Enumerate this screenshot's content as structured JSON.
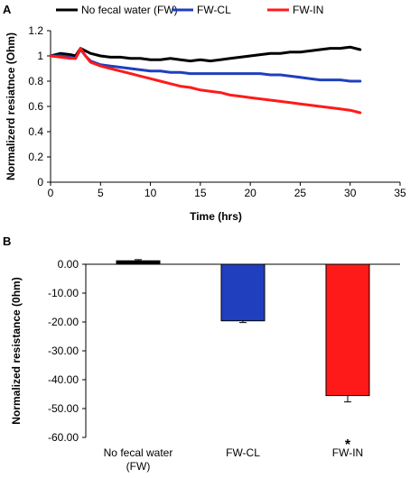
{
  "chart_data": [
    {
      "panel_label": "A",
      "type": "line",
      "xlabel": "Time (hrs)",
      "ylabel": "Normalizerd resiatnce (Ohm)",
      "xlim": [
        0,
        35
      ],
      "ylim": [
        0,
        1.2
      ],
      "x_ticks": [
        0,
        5,
        10,
        15,
        20,
        25,
        30,
        35
      ],
      "y_ticks": [
        0,
        0.2,
        0.4,
        0.6,
        0.8,
        1,
        1.2
      ],
      "y_tick_labels": [
        "0",
        "0.2",
        "0.4",
        "0.6",
        "0.8",
        "1",
        "1.2"
      ],
      "grid": false,
      "legend_position": "top",
      "series": [
        {
          "name": "No fecal water (FW)",
          "color": "#000000",
          "x": [
            0,
            1,
            2,
            2.5,
            3,
            3.5,
            4,
            5,
            6,
            7,
            8,
            9,
            10,
            11,
            12,
            13,
            14,
            15,
            16,
            17,
            18,
            19,
            20,
            21,
            22,
            23,
            24,
            25,
            26,
            27,
            28,
            29,
            30,
            31
          ],
          "y": [
            1.0,
            1.02,
            1.01,
            1.0,
            1.06,
            1.04,
            1.02,
            1.0,
            0.99,
            0.99,
            0.98,
            0.98,
            0.97,
            0.97,
            0.98,
            0.97,
            0.96,
            0.97,
            0.96,
            0.97,
            0.98,
            0.99,
            1.0,
            1.01,
            1.02,
            1.02,
            1.03,
            1.03,
            1.04,
            1.05,
            1.06,
            1.06,
            1.07,
            1.05
          ]
        },
        {
          "name": "FW-CL",
          "color": "#1f3fbf",
          "x": [
            0,
            1,
            2,
            2.5,
            3,
            3.5,
            4,
            5,
            6,
            7,
            8,
            9,
            10,
            11,
            12,
            13,
            14,
            15,
            16,
            17,
            18,
            19,
            20,
            21,
            22,
            23,
            24,
            25,
            26,
            27,
            28,
            29,
            30,
            31
          ],
          "y": [
            1.0,
            1.0,
            0.99,
            0.98,
            1.05,
            1.0,
            0.96,
            0.93,
            0.92,
            0.91,
            0.9,
            0.89,
            0.88,
            0.88,
            0.87,
            0.87,
            0.86,
            0.86,
            0.86,
            0.86,
            0.86,
            0.86,
            0.86,
            0.86,
            0.85,
            0.85,
            0.84,
            0.83,
            0.82,
            0.81,
            0.81,
            0.81,
            0.8,
            0.8
          ]
        },
        {
          "name": "FW-IN",
          "color": "#ff1a1a",
          "x": [
            0,
            1,
            2,
            2.5,
            3,
            3.5,
            4,
            5,
            6,
            7,
            8,
            9,
            10,
            11,
            12,
            13,
            14,
            15,
            16,
            17,
            18,
            19,
            20,
            21,
            22,
            23,
            24,
            25,
            26,
            27,
            28,
            29,
            30,
            31
          ],
          "y": [
            1.0,
            0.99,
            0.98,
            0.98,
            1.06,
            1.0,
            0.95,
            0.92,
            0.9,
            0.88,
            0.86,
            0.84,
            0.82,
            0.8,
            0.78,
            0.76,
            0.75,
            0.73,
            0.72,
            0.71,
            0.69,
            0.68,
            0.67,
            0.66,
            0.65,
            0.64,
            0.63,
            0.62,
            0.61,
            0.6,
            0.59,
            0.58,
            0.57,
            0.55
          ]
        }
      ]
    },
    {
      "panel_label": "B",
      "type": "bar",
      "ylabel": "Normalized resistance (0hm)",
      "xlabel": "",
      "ylim": [
        -60,
        0
      ],
      "y_ticks": [
        0,
        -10,
        -20,
        -30,
        -40,
        -50,
        -60
      ],
      "y_tick_labels": [
        "0.00",
        "-10.00",
        "-20.00",
        "-30.00",
        "-40.00",
        "-50.00",
        "-60.00"
      ],
      "grid": false,
      "categories": [
        "No fecal water (FW)",
        "FW-CL",
        "FW-IN"
      ],
      "category_lines": [
        [
          "No fecal water",
          "(FW)"
        ],
        [
          "FW-CL"
        ],
        [
          "FW-IN"
        ]
      ],
      "values": [
        1.2,
        -19.6,
        -45.5
      ],
      "errors": [
        0.4,
        0.6,
        2.2
      ],
      "colors": [
        "#000000",
        "#1f3fbf",
        "#ff1a1a"
      ],
      "annotations": [
        {
          "category": "FW-IN",
          "text": "*"
        }
      ]
    }
  ]
}
